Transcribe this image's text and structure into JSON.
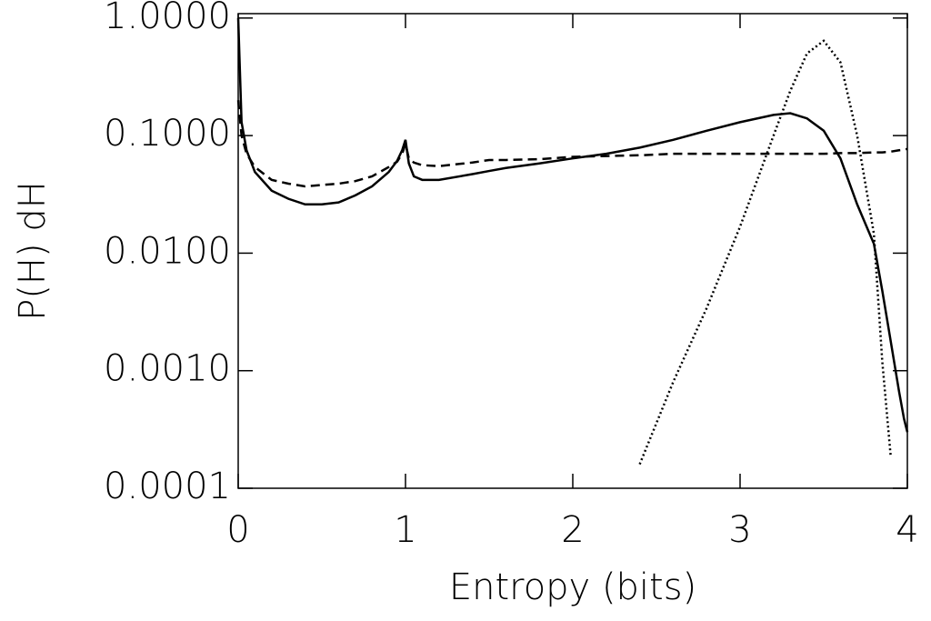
{
  "chart_data": {
    "type": "line",
    "xlabel": "Entropy (bits)",
    "ylabel": "P(H) dH",
    "x": [
      0,
      0.02,
      0.05,
      0.1,
      0.2,
      0.3,
      0.4,
      0.5,
      0.6,
      0.7,
      0.8,
      0.9,
      0.95,
      0.98,
      1.0,
      1.02,
      1.05,
      1.1,
      1.2,
      1.4,
      1.5,
      1.6,
      1.8,
      2.0,
      2.2,
      2.4,
      2.6,
      2.8,
      3.0,
      3.2,
      3.3,
      3.4,
      3.5,
      3.6,
      3.7,
      3.8,
      3.85,
      3.9,
      3.95,
      3.98,
      4.0
    ],
    "series": [
      {
        "color": "#000000",
        "dash": "solid",
        "values": [
          1.0,
          0.13,
          0.075,
          0.049,
          0.034,
          0.029,
          0.026,
          0.026,
          0.027,
          0.031,
          0.037,
          0.049,
          0.061,
          0.075,
          0.092,
          0.058,
          0.045,
          0.042,
          0.042,
          0.047,
          0.05,
          0.053,
          0.058,
          0.064,
          0.07,
          0.079,
          0.092,
          0.11,
          0.13,
          0.15,
          0.155,
          0.14,
          0.11,
          0.064,
          0.026,
          0.012,
          0.0048,
          0.0018,
          0.00067,
          0.00039,
          0.0003
        ]
      },
      {
        "color": "#000000",
        "dash": "dashed",
        "values": [
          0.2,
          0.1,
          0.07,
          0.054,
          0.042,
          0.039,
          0.037,
          0.038,
          0.039,
          0.041,
          0.045,
          0.054,
          0.06,
          0.07,
          0.085,
          0.064,
          0.059,
          0.056,
          0.055,
          0.059,
          0.062,
          0.062,
          0.063,
          0.066,
          0.067,
          0.068,
          0.07,
          0.07,
          0.07,
          0.07,
          0.07,
          0.07,
          0.07,
          0.071,
          0.071,
          0.072,
          0.072,
          0.073,
          0.075,
          0.076,
          0.077
        ]
      },
      {
        "color": "#000000",
        "dash": "dotted",
        "values": [
          null,
          null,
          null,
          null,
          null,
          null,
          null,
          null,
          null,
          null,
          null,
          null,
          null,
          null,
          null,
          null,
          null,
          null,
          null,
          null,
          null,
          null,
          null,
          null,
          null,
          0.00016,
          0.0008,
          0.0034,
          0.0168,
          0.1,
          0.24,
          0.5,
          0.64,
          0.42,
          0.1,
          0.0146,
          0.0012,
          0.00019,
          null,
          null,
          null
        ]
      }
    ],
    "xlim": [
      0,
      4
    ],
    "xticks": [
      0,
      1,
      2,
      3,
      4
    ],
    "ylim": [
      0.0001,
      1.09
    ],
    "log_y": true,
    "yticks": [
      {
        "value": 0.0001,
        "label": "0.0001"
      },
      {
        "value": 0.001,
        "label": "0.0010"
      },
      {
        "value": 0.01,
        "label": "0.0100"
      },
      {
        "value": 0.1,
        "label": "0.1000"
      },
      {
        "value": 1,
        "label": "1.0000"
      }
    ]
  }
}
